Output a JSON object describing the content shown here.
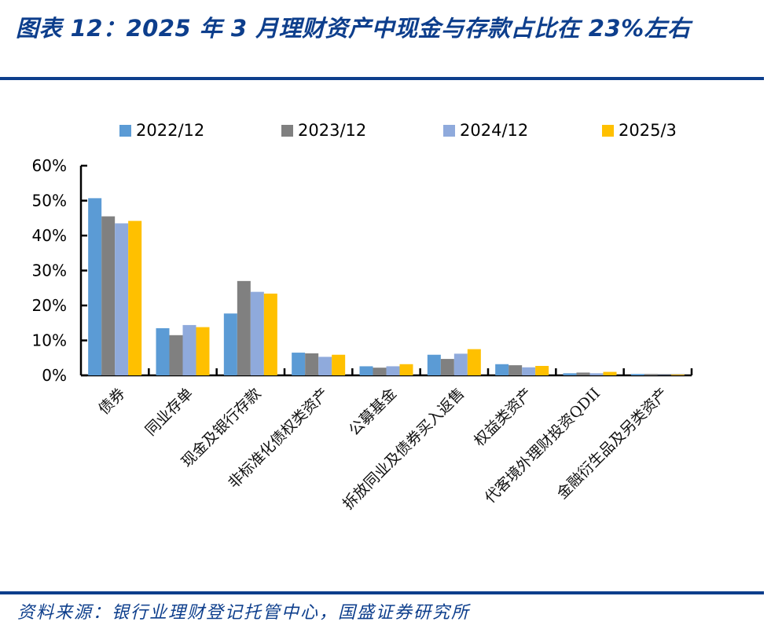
{
  "header": {
    "title": "图表 12：2025 年 3 月理财资产中现金与存款占比在 23%左右"
  },
  "footer": {
    "source": "资料来源：银行业理财登记托管中心，国盛证券研究所"
  },
  "legend": [
    {
      "label": "2022/12",
      "color": "#5b9bd5"
    },
    {
      "label": "2023/12",
      "color": "#808080"
    },
    {
      "label": "2024/12",
      "color": "#8faadc"
    },
    {
      "label": "2025/3",
      "color": "#ffc000"
    }
  ],
  "chart_data": {
    "type": "bar",
    "title": "图表 12：2025 年 3 月理财资产中现金与存款占比在 23%左右",
    "xlabel": "",
    "ylabel": "",
    "ylim": [
      0,
      60
    ],
    "yticks": [
      "0%",
      "10%",
      "20%",
      "30%",
      "40%",
      "50%",
      "60%"
    ],
    "grid": false,
    "legend_position": "top",
    "categories": [
      "债券",
      "同业存单",
      "现金及银行存款",
      "非标准化债权类资产",
      "公募基金",
      "拆放同业及债券买入返售",
      "权益类资产",
      "代客境外理财投资QDII",
      "金融衍生品及另类资产"
    ],
    "series": [
      {
        "name": "2022/12",
        "color": "#5b9bd5",
        "values": [
          50.7,
          13.5,
          17.7,
          6.5,
          2.6,
          5.9,
          3.2,
          0.6,
          0.4
        ]
      },
      {
        "name": "2023/12",
        "color": "#808080",
        "values": [
          45.5,
          11.5,
          27.0,
          6.3,
          2.2,
          4.7,
          2.9,
          0.8,
          0.4
        ]
      },
      {
        "name": "2024/12",
        "color": "#8faadc",
        "values": [
          43.5,
          14.4,
          23.9,
          5.3,
          2.6,
          6.2,
          2.3,
          0.6,
          0.1
        ]
      },
      {
        "name": "2025/3",
        "color": "#ffc000",
        "values": [
          44.2,
          13.8,
          23.4,
          5.9,
          3.2,
          7.5,
          2.7,
          1.0,
          0.2
        ]
      }
    ]
  }
}
